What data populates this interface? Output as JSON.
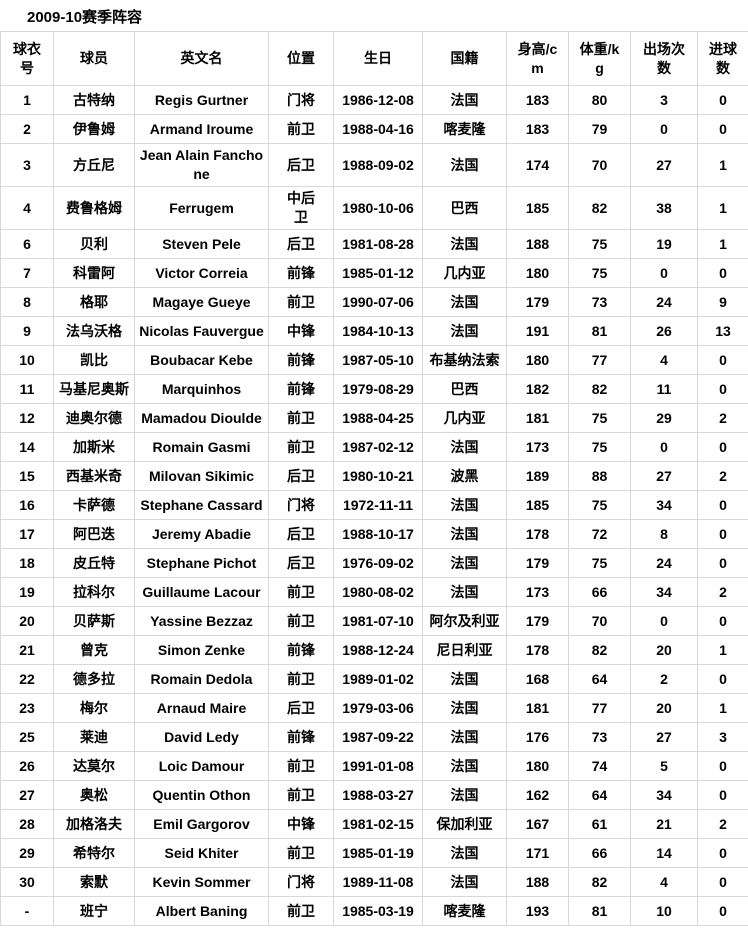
{
  "page_title": "2009-10赛季阵容",
  "table": {
    "headers": [
      "球衣号",
      "球员",
      "英文名",
      "位置",
      "生日",
      "国籍",
      "身高/cm",
      "体重/kg",
      "出场次数",
      "进球数"
    ],
    "rows": [
      [
        "1",
        "古特纳",
        "Regis Gurtner",
        "门将",
        "1986-12-08",
        "法国",
        "183",
        "80",
        "3",
        "0"
      ],
      [
        "2",
        "伊鲁姆",
        "Armand Iroume",
        "前卫",
        "1988-04-16",
        "喀麦隆",
        "183",
        "79",
        "0",
        "0"
      ],
      [
        "3",
        "方丘尼",
        "Jean Alain Fanchone",
        "后卫",
        "1988-09-02",
        "法国",
        "174",
        "70",
        "27",
        "1"
      ],
      [
        "4",
        "费鲁格姆",
        "Ferrugem",
        "中后卫",
        "1980-10-06",
        "巴西",
        "185",
        "82",
        "38",
        "1"
      ],
      [
        "6",
        "贝利",
        "Steven Pele",
        "后卫",
        "1981-08-28",
        "法国",
        "188",
        "75",
        "19",
        "1"
      ],
      [
        "7",
        "科雷阿",
        "Victor Correia",
        "前锋",
        "1985-01-12",
        "几内亚",
        "180",
        "75",
        "0",
        "0"
      ],
      [
        "8",
        "格耶",
        "Magaye Gueye",
        "前卫",
        "1990-07-06",
        "法国",
        "179",
        "73",
        "24",
        "9"
      ],
      [
        "9",
        "法乌沃格",
        "Nicolas Fauvergue",
        "中锋",
        "1984-10-13",
        "法国",
        "191",
        "81",
        "26",
        "13"
      ],
      [
        "10",
        "凯比",
        "Boubacar Kebe",
        "前锋",
        "1987-05-10",
        "布基纳法索",
        "180",
        "77",
        "4",
        "0"
      ],
      [
        "11",
        "马基尼奥斯",
        "Marquinhos",
        "前锋",
        "1979-08-29",
        "巴西",
        "182",
        "82",
        "11",
        "0"
      ],
      [
        "12",
        "迪奥尔德",
        "Mamadou Dioulde",
        "前卫",
        "1988-04-25",
        "几内亚",
        "181",
        "75",
        "29",
        "2"
      ],
      [
        "14",
        "加斯米",
        "Romain Gasmi",
        "前卫",
        "1987-02-12",
        "法国",
        "173",
        "75",
        "0",
        "0"
      ],
      [
        "15",
        "西基米奇",
        "Milovan Sikimic",
        "后卫",
        "1980-10-21",
        "波黑",
        "189",
        "88",
        "27",
        "2"
      ],
      [
        "16",
        "卡萨德",
        "Stephane Cassard",
        "门将",
        "1972-11-11",
        "法国",
        "185",
        "75",
        "34",
        "0"
      ],
      [
        "17",
        "阿巴迭",
        "Jeremy Abadie",
        "后卫",
        "1988-10-17",
        "法国",
        "178",
        "72",
        "8",
        "0"
      ],
      [
        "18",
        "皮丘特",
        "Stephane Pichot",
        "后卫",
        "1976-09-02",
        "法国",
        "179",
        "75",
        "24",
        "0"
      ],
      [
        "19",
        "拉科尔",
        "Guillaume Lacour",
        "前卫",
        "1980-08-02",
        "法国",
        "173",
        "66",
        "34",
        "2"
      ],
      [
        "20",
        "贝萨斯",
        "Yassine Bezzaz",
        "前卫",
        "1981-07-10",
        "阿尔及利亚",
        "179",
        "70",
        "0",
        "0"
      ],
      [
        "21",
        "曾克",
        "Simon Zenke",
        "前锋",
        "1988-12-24",
        "尼日利亚",
        "178",
        "82",
        "20",
        "1"
      ],
      [
        "22",
        "德多拉",
        "Romain Dedola",
        "前卫",
        "1989-01-02",
        "法国",
        "168",
        "64",
        "2",
        "0"
      ],
      [
        "23",
        "梅尔",
        "Arnaud Maire",
        "后卫",
        "1979-03-06",
        "法国",
        "181",
        "77",
        "20",
        "1"
      ],
      [
        "25",
        "莱迪",
        "David Ledy",
        "前锋",
        "1987-09-22",
        "法国",
        "176",
        "73",
        "27",
        "3"
      ],
      [
        "26",
        "达莫尔",
        "Loic Damour",
        "前卫",
        "1991-01-08",
        "法国",
        "180",
        "74",
        "5",
        "0"
      ],
      [
        "27",
        "奥松",
        "Quentin Othon",
        "前卫",
        "1988-03-27",
        "法国",
        "162",
        "64",
        "34",
        "0"
      ],
      [
        "28",
        "加格洛夫",
        "Emil Gargorov",
        "中锋",
        "1981-02-15",
        "保加利亚",
        "167",
        "61",
        "21",
        "2"
      ],
      [
        "29",
        "希特尔",
        "Seid Khiter",
        "前卫",
        "1985-01-19",
        "法国",
        "171",
        "66",
        "14",
        "0"
      ],
      [
        "30",
        "索默",
        "Kevin Sommer",
        "门将",
        "1989-11-08",
        "法国",
        "188",
        "82",
        "4",
        "0"
      ],
      [
        "-",
        "班宁",
        "Albert Baning",
        "前卫",
        "1985-03-19",
        "喀麦隆",
        "193",
        "81",
        "10",
        "0"
      ]
    ]
  },
  "colors": {
    "border": "#d8d8d8",
    "text": "#000000",
    "background": "#ffffff"
  }
}
